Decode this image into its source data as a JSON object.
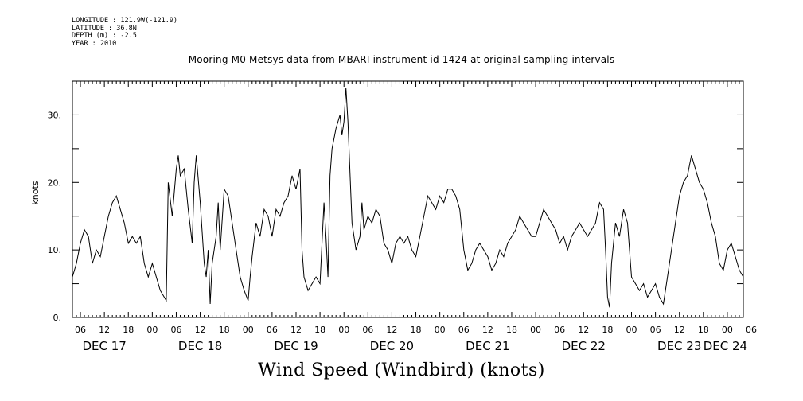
{
  "meta": {
    "longitude": "LONGITUDE : 121.9W(-121.9)",
    "latitude": "LATITUDE : 36.8N",
    "depth": "DEPTH (m) : -2.5",
    "year": "YEAR : 2010"
  },
  "chart_data": {
    "type": "line",
    "title": "Mooring M0 Metsys data from MBARI instrument id 1424 at original sampling intervals",
    "xlabel": "Wind Speed (Windbird) (knots)",
    "ylabel": "knots",
    "ylim": [
      0,
      35
    ],
    "y_ticks": [
      {
        "value": 0,
        "label": "0."
      },
      {
        "value": 10,
        "label": "10."
      },
      {
        "value": 20,
        "label": "20."
      },
      {
        "value": 30,
        "label": "30."
      }
    ],
    "x_units": "hours since DEC 17 00:00, 2010",
    "xlim": [
      4,
      172
    ],
    "hour_ticks": [
      "06",
      "12",
      "18",
      "00",
      "06",
      "12",
      "18",
      "00",
      "06",
      "12",
      "18",
      "00",
      "06",
      "12",
      "18",
      "00",
      "06",
      "12",
      "18",
      "00",
      "06",
      "12",
      "18",
      "00",
      "06",
      "12",
      "18",
      "00",
      "06"
    ],
    "day_labels": [
      "DEC 17",
      "DEC 18",
      "DEC 19",
      "DEC 20",
      "DEC 21",
      "DEC 22",
      "DEC 23",
      "DEC 24"
    ],
    "series": [
      {
        "color": "#000000",
        "points": [
          [
            4,
            6
          ],
          [
            5,
            8
          ],
          [
            6,
            11
          ],
          [
            7,
            13
          ],
          [
            8,
            12
          ],
          [
            9,
            8
          ],
          [
            10,
            10
          ],
          [
            11,
            9
          ],
          [
            12,
            12
          ],
          [
            13,
            15
          ],
          [
            14,
            17
          ],
          [
            15,
            18
          ],
          [
            16,
            16
          ],
          [
            17,
            14
          ],
          [
            18,
            11
          ],
          [
            19,
            12
          ],
          [
            20,
            11
          ],
          [
            21,
            12
          ],
          [
            22,
            8
          ],
          [
            23,
            6
          ],
          [
            24,
            8
          ],
          [
            25,
            6
          ],
          [
            26,
            4
          ],
          [
            27,
            3
          ],
          [
            27.5,
            2.5
          ],
          [
            28,
            20
          ],
          [
            29,
            15
          ],
          [
            30,
            22
          ],
          [
            30.5,
            24
          ],
          [
            31,
            21
          ],
          [
            32,
            22
          ],
          [
            33,
            16
          ],
          [
            34,
            11
          ],
          [
            34.5,
            20
          ],
          [
            35,
            24
          ],
          [
            36,
            17
          ],
          [
            37,
            8
          ],
          [
            37.5,
            6
          ],
          [
            38,
            10
          ],
          [
            38.5,
            2
          ],
          [
            39,
            8
          ],
          [
            40,
            12
          ],
          [
            40.5,
            17
          ],
          [
            41,
            10
          ],
          [
            42,
            19
          ],
          [
            43,
            18
          ],
          [
            44,
            14
          ],
          [
            45,
            10
          ],
          [
            46,
            6
          ],
          [
            47,
            4
          ],
          [
            48,
            2.5
          ],
          [
            48.5,
            6
          ],
          [
            49,
            9
          ],
          [
            50,
            14
          ],
          [
            51,
            12
          ],
          [
            52,
            16
          ],
          [
            53,
            15
          ],
          [
            54,
            12
          ],
          [
            55,
            16
          ],
          [
            56,
            15
          ],
          [
            57,
            17
          ],
          [
            58,
            18
          ],
          [
            59,
            21
          ],
          [
            60,
            19
          ],
          [
            61,
            22
          ],
          [
            61.5,
            10
          ],
          [
            62,
            6
          ],
          [
            63,
            4
          ],
          [
            64,
            5
          ],
          [
            65,
            6
          ],
          [
            66,
            5
          ],
          [
            67,
            17
          ],
          [
            67.5,
            12
          ],
          [
            68,
            6
          ],
          [
            68.5,
            21
          ],
          [
            69,
            25
          ],
          [
            70,
            28
          ],
          [
            71,
            30
          ],
          [
            71.5,
            27
          ],
          [
            72,
            29
          ],
          [
            72.5,
            34
          ],
          [
            73,
            29
          ],
          [
            74,
            14
          ],
          [
            75,
            10
          ],
          [
            76,
            12
          ],
          [
            76.5,
            17
          ],
          [
            77,
            13
          ],
          [
            78,
            15
          ],
          [
            79,
            14
          ],
          [
            80,
            16
          ],
          [
            81,
            15
          ],
          [
            82,
            11
          ],
          [
            83,
            10
          ],
          [
            84,
            8
          ],
          [
            85,
            11
          ],
          [
            86,
            12
          ],
          [
            87,
            11
          ],
          [
            88,
            12
          ],
          [
            89,
            10
          ],
          [
            90,
            9
          ],
          [
            91,
            12
          ],
          [
            92,
            15
          ],
          [
            93,
            18
          ],
          [
            94,
            17
          ],
          [
            95,
            16
          ],
          [
            96,
            18
          ],
          [
            97,
            17
          ],
          [
            98,
            19
          ],
          [
            99,
            19
          ],
          [
            100,
            18
          ],
          [
            101,
            16
          ],
          [
            102,
            10
          ],
          [
            103,
            7
          ],
          [
            104,
            8
          ],
          [
            105,
            10
          ],
          [
            106,
            11
          ],
          [
            107,
            10
          ],
          [
            108,
            9
          ],
          [
            109,
            7
          ],
          [
            110,
            8
          ],
          [
            111,
            10
          ],
          [
            112,
            9
          ],
          [
            113,
            11
          ],
          [
            114,
            12
          ],
          [
            115,
            13
          ],
          [
            116,
            15
          ],
          [
            117,
            14
          ],
          [
            118,
            13
          ],
          [
            119,
            12
          ],
          [
            120,
            12
          ],
          [
            121,
            14
          ],
          [
            122,
            16
          ],
          [
            123,
            15
          ],
          [
            124,
            14
          ],
          [
            125,
            13
          ],
          [
            126,
            11
          ],
          [
            127,
            12
          ],
          [
            128,
            10
          ],
          [
            129,
            12
          ],
          [
            130,
            13
          ],
          [
            131,
            14
          ],
          [
            132,
            13
          ],
          [
            133,
            12
          ],
          [
            134,
            13
          ],
          [
            135,
            14
          ],
          [
            136,
            17
          ],
          [
            137,
            16
          ],
          [
            137.5,
            10
          ],
          [
            138,
            3
          ],
          [
            138.5,
            1.5
          ],
          [
            139,
            8
          ],
          [
            140,
            14
          ],
          [
            141,
            12
          ],
          [
            142,
            16
          ],
          [
            143,
            14
          ],
          [
            144,
            6
          ],
          [
            145,
            5
          ],
          [
            146,
            4
          ],
          [
            147,
            5
          ],
          [
            148,
            3
          ],
          [
            149,
            4
          ],
          [
            150,
            5
          ],
          [
            151,
            3
          ],
          [
            152,
            2
          ],
          [
            153,
            6
          ],
          [
            154,
            10
          ],
          [
            155,
            14
          ],
          [
            156,
            18
          ],
          [
            157,
            20
          ],
          [
            158,
            21
          ],
          [
            159,
            24
          ],
          [
            160,
            22
          ],
          [
            161,
            20
          ],
          [
            162,
            19
          ],
          [
            163,
            17
          ],
          [
            164,
            14
          ],
          [
            165,
            12
          ],
          [
            166,
            8
          ],
          [
            167,
            7
          ],
          [
            168,
            10
          ],
          [
            169,
            11
          ],
          [
            170,
            9
          ],
          [
            171,
            7
          ],
          [
            172,
            6
          ]
        ]
      }
    ]
  }
}
